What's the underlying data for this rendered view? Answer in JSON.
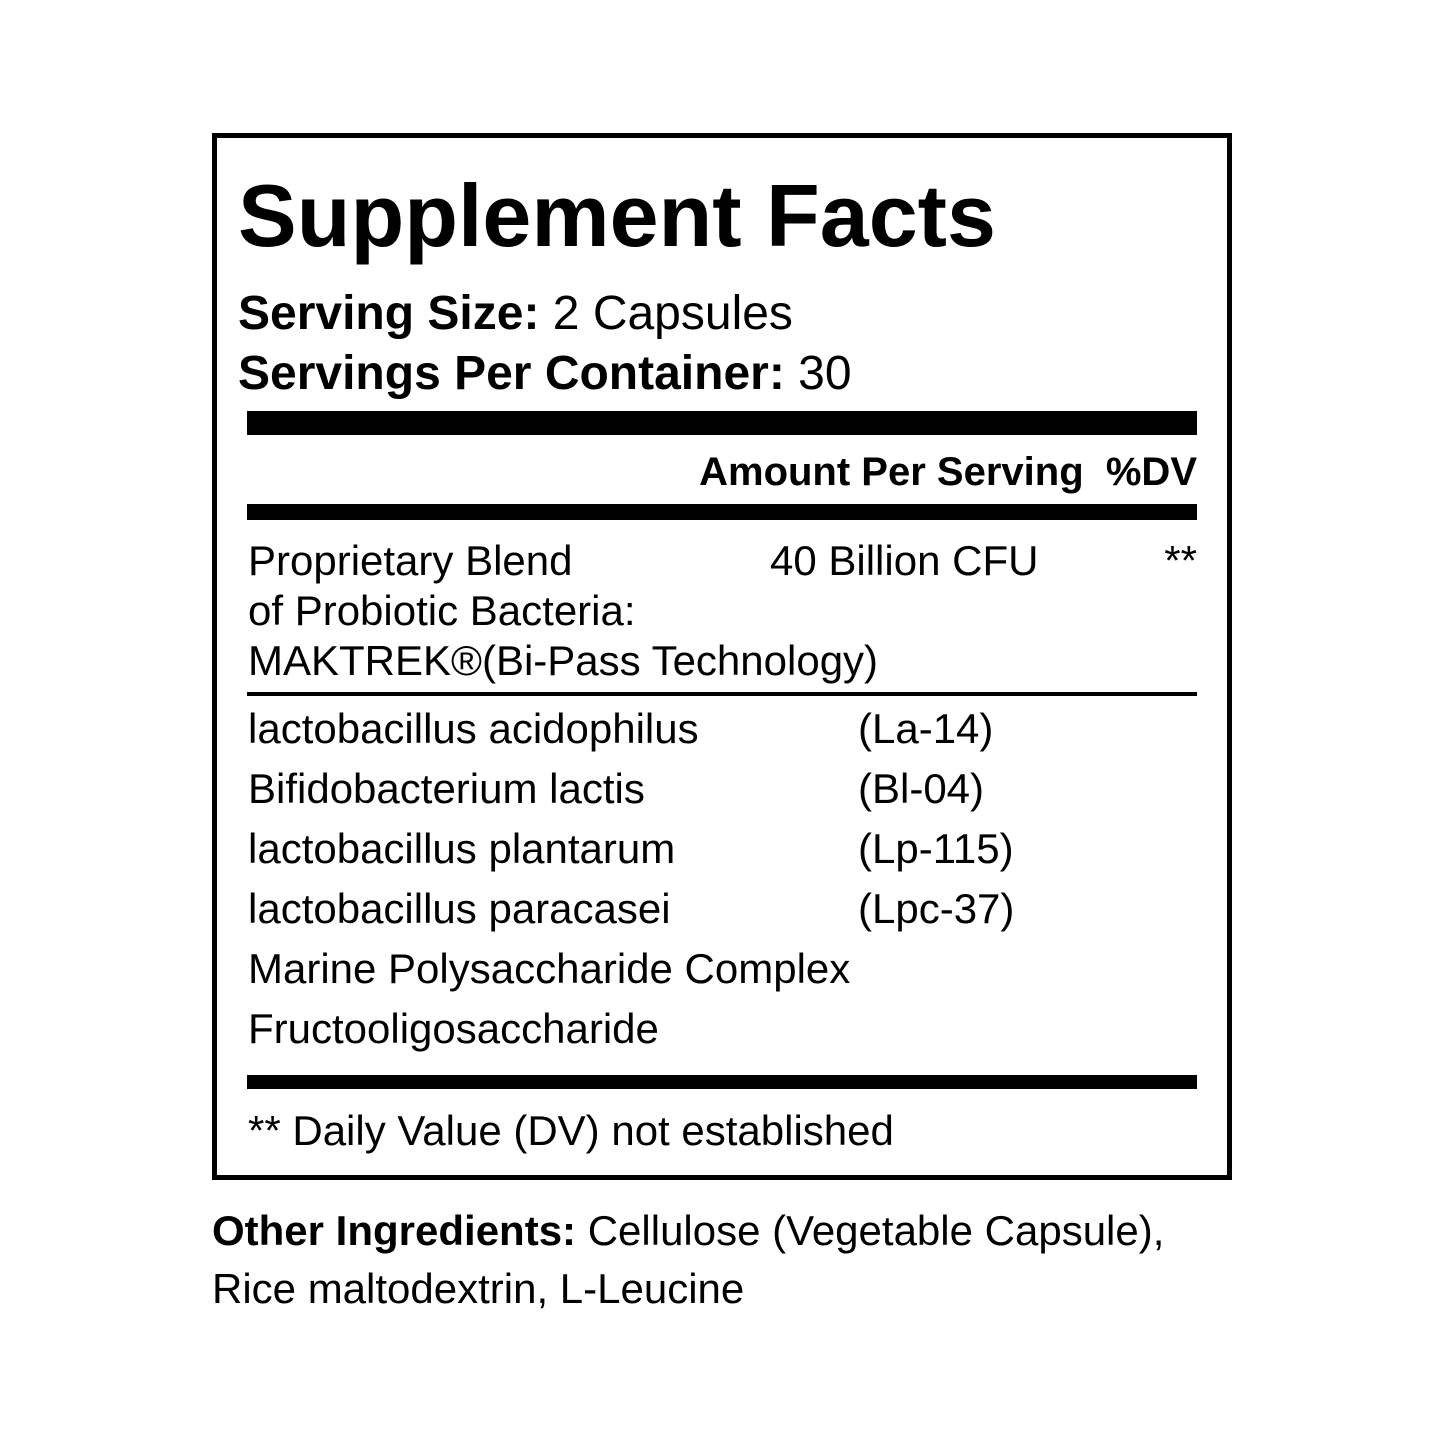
{
  "title": "Supplement Facts",
  "serving_size": {
    "label": "Serving Size:",
    "value": "2 Capsules"
  },
  "servings_per_container": {
    "label": "Servings Per Container:",
    "value": "30"
  },
  "header": {
    "amount": "Amount Per Serving",
    "dv": "%DV"
  },
  "blend": {
    "lines": [
      "Proprietary Blend",
      "of Probiotic Bacteria:",
      "MAKTREK®(Bi-Pass Technology)"
    ],
    "amount": "40 Billion CFU",
    "dv": "**"
  },
  "ingredients": [
    {
      "name": "lactobacillus acidophilus",
      "strain": "(La-14)"
    },
    {
      "name": "Bifidobacterium lactis",
      "strain": "(Bl-04)"
    },
    {
      "name": "lactobacillus plantarum",
      "strain": "(Lp-115)"
    },
    {
      "name": "lactobacillus paracasei",
      "strain": "(Lpc-37)"
    },
    {
      "name": "Marine Polysaccharide Complex"
    },
    {
      "name": "Fructooligosaccharide"
    }
  ],
  "footnote": "** Daily Value (DV) not established",
  "other_ingredients": {
    "label": "Other Ingredients:",
    "lines": [
      "Cellulose (Vegetable Capsule),",
      "Rice maltodextrin, L-Leucine"
    ]
  }
}
